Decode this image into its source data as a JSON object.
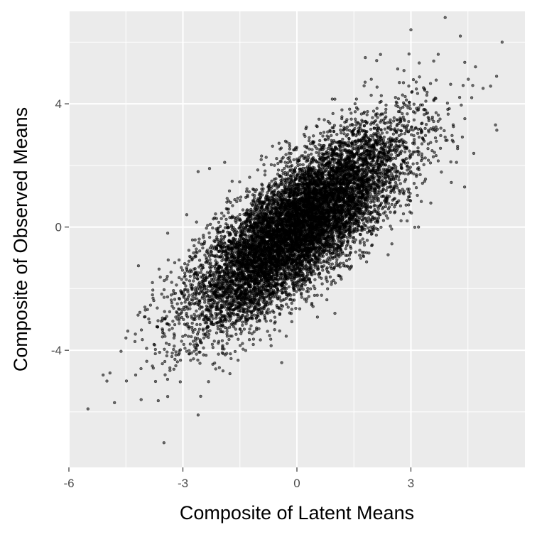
{
  "chart_data": {
    "type": "scatter",
    "xlabel": "Composite of Latent Means",
    "ylabel": "Composite of Observed Means",
    "xlim": [
      -6,
      6
    ],
    "ylim": [
      -7.8,
      7.0
    ],
    "x_ticks": [
      -6,
      -3,
      0,
      3
    ],
    "y_ticks": [
      -4,
      0,
      4
    ],
    "x_tick_labels": [
      "-6",
      "-3",
      "0",
      "3"
    ],
    "y_tick_labels": [
      "-4",
      "0",
      "4"
    ],
    "grid": true,
    "legend": "none",
    "n_points_approx": 10000,
    "cloud_summary": {
      "center": [
        0.0,
        0.0
      ],
      "sd_x": 1.4,
      "sd_y": 1.6,
      "correlation": 0.78,
      "x_range": [
        -5.5,
        5.4
      ],
      "y_range": [
        -7.0,
        6.8
      ]
    },
    "points": [
      {
        "x": 3.9,
        "y": 6.8
      },
      {
        "x": 3.0,
        "y": 6.4
      },
      {
        "x": 5.4,
        "y": 6.0
      },
      {
        "x": 4.3,
        "y": 6.2
      },
      {
        "x": 4.7,
        "y": 5.2
      },
      {
        "x": 4.9,
        "y": 4.5
      },
      {
        "x": 2.2,
        "y": 5.6
      },
      {
        "x": 1.8,
        "y": 5.5
      },
      {
        "x": 4.2,
        "y": 2.1
      },
      {
        "x": 4.6,
        "y": 4.2
      },
      {
        "x": 3.2,
        "y": 0.0
      },
      {
        "x": 2.9,
        "y": 0.2
      },
      {
        "x": 2.4,
        "y": -0.9
      },
      {
        "x": 1.0,
        "y": -2.8
      },
      {
        "x": -0.4,
        "y": -4.4
      },
      {
        "x": -1.0,
        "y": -3.3
      },
      {
        "x": -1.9,
        "y": 2.1
      },
      {
        "x": -2.3,
        "y": 1.9
      },
      {
        "x": -2.6,
        "y": 1.8
      },
      {
        "x": -2.9,
        "y": 0.4
      },
      {
        "x": -3.4,
        "y": -0.2
      },
      {
        "x": -4.5,
        "y": -3.6
      },
      {
        "x": -5.0,
        "y": -5.0
      },
      {
        "x": -5.1,
        "y": -4.8
      },
      {
        "x": -5.5,
        "y": -5.9
      },
      {
        "x": -4.8,
        "y": -5.7
      },
      {
        "x": -4.1,
        "y": -5.6
      },
      {
        "x": -3.5,
        "y": -7.0
      },
      {
        "x": -2.6,
        "y": -6.1
      },
      {
        "x": -3.4,
        "y": -5.5
      },
      {
        "x": -4.0,
        "y": -2.6
      },
      {
        "x": -3.8,
        "y": -2.2
      }
    ]
  }
}
